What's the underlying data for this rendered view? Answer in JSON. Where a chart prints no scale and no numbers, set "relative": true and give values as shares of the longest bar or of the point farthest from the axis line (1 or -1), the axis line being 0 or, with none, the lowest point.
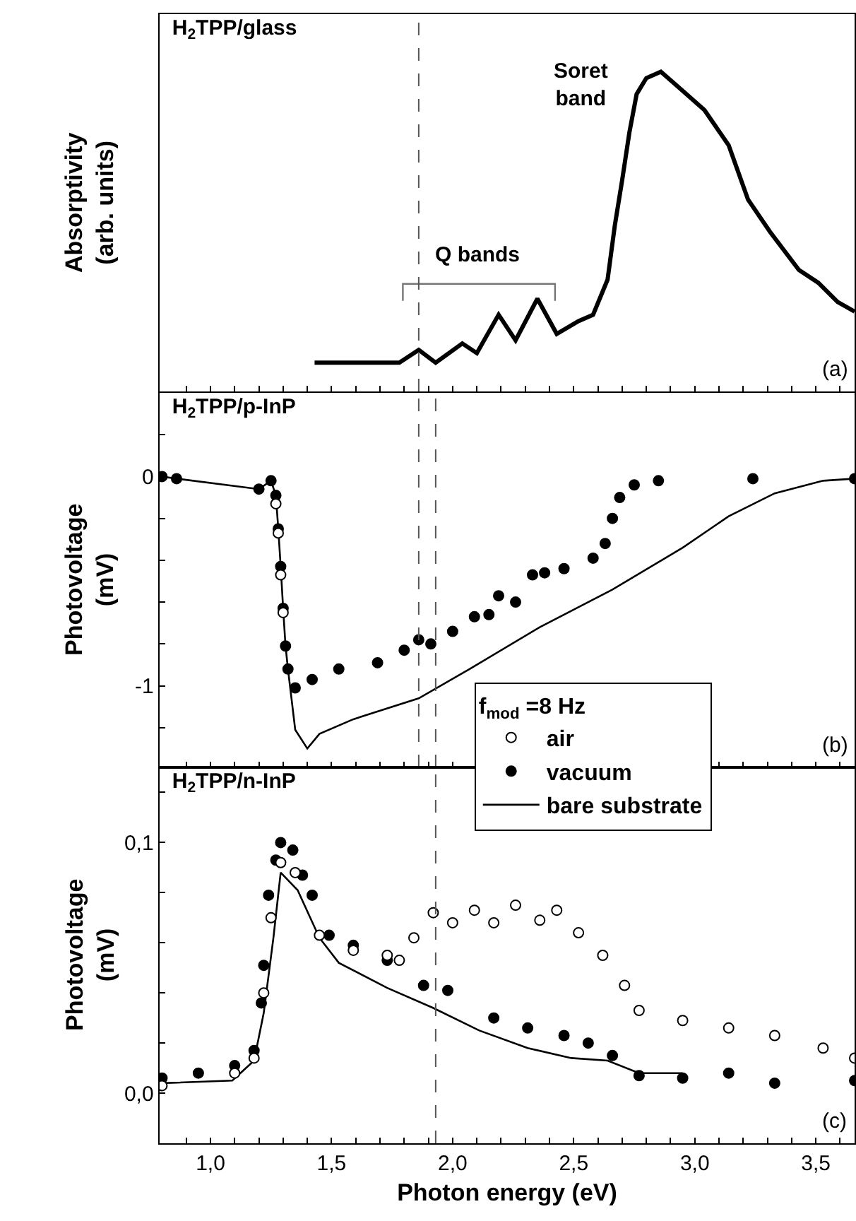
{
  "chart_data": [
    {
      "type": "line",
      "title": "H$_{2}$TPP/glass",
      "ylabel": "Absorptivity\n(arb. units)",
      "relative": true,
      "tick_labels": false,
      "grid": false,
      "legend": false,
      "marker": "none",
      "line_style": "solid",
      "annotations": [
        "(a)",
        "Soret\nband",
        "Q bands"
      ],
      "ref_lines": [
        {
          "axis": "x",
          "value": 1.86,
          "color": "#555555",
          "line_style": "dashed"
        }
      ],
      "xlim": [
        0.79,
        3.66
      ],
      "xticks": [
        {
          "value": 0.9,
          "label": null
        },
        {
          "value": 1.0,
          "label": null
        },
        {
          "value": 1.1,
          "label": null
        },
        {
          "value": 1.2,
          "label": null
        },
        {
          "value": 1.3,
          "label": null
        },
        {
          "value": 1.4,
          "label": null
        },
        {
          "value": 1.5,
          "label": null
        },
        {
          "value": 1.6,
          "label": null
        },
        {
          "value": 1.7,
          "label": null
        },
        {
          "value": 1.8,
          "label": null
        },
        {
          "value": 1.9,
          "label": null
        },
        {
          "value": 2.0,
          "label": null
        },
        {
          "value": 2.1,
          "label": null
        },
        {
          "value": 2.2,
          "label": null
        },
        {
          "value": 2.3,
          "label": null
        },
        {
          "value": 2.4,
          "label": null
        },
        {
          "value": 2.5,
          "label": null
        },
        {
          "value": 2.6,
          "label": null
        },
        {
          "value": 2.7,
          "label": null
        },
        {
          "value": 2.8,
          "label": null
        },
        {
          "value": 2.9,
          "label": null
        },
        {
          "value": 3.0,
          "label": null
        },
        {
          "value": 3.1,
          "label": null
        },
        {
          "value": 3.2,
          "label": null
        },
        {
          "value": 3.3,
          "label": null
        },
        {
          "value": 3.4,
          "label": null
        },
        {
          "value": 3.5,
          "label": null
        },
        {
          "value": 3.6,
          "label": null
        }
      ],
      "series": [
        {
          "color": "#000000",
          "x": [
            1.43,
            1.78,
            1.86,
            1.93,
            2.04,
            2.1,
            2.19,
            2.26,
            2.35,
            2.43,
            2.52,
            2.58,
            2.64,
            2.67,
            2.7,
            2.73,
            2.76,
            2.8,
            2.86,
            2.95,
            3.04,
            3.14,
            3.22,
            3.31,
            3.43,
            3.51,
            3.59,
            3.66
          ],
          "values": [
            0.09,
            0.09,
            0.13,
            0.09,
            0.15,
            0.12,
            0.24,
            0.16,
            0.29,
            0.18,
            0.22,
            0.24,
            0.35,
            0.52,
            0.66,
            0.81,
            0.93,
            0.98,
            1.0,
            0.94,
            0.88,
            0.77,
            0.6,
            0.5,
            0.38,
            0.34,
            0.28,
            0.25
          ]
        }
      ]
    },
    {
      "type": "scatter",
      "title": "H$_{2}$TPP/p-InP",
      "ylabel": "Photovoltage\n(mV)",
      "tick_labels": "y",
      "grid": false,
      "legend": false,
      "annotations": [
        "(b)"
      ],
      "ref_lines": [
        {
          "axis": "x",
          "value": 1.86,
          "color": "#555555",
          "line_style": "dashed"
        },
        {
          "axis": "x",
          "value": 1.93,
          "color": "#555555",
          "line_style": "dashed"
        }
      ],
      "xlim": [
        0.79,
        3.66
      ],
      "xticks": [
        {
          "value": 0.9,
          "label": null
        },
        {
          "value": 1.0,
          "label": null
        },
        {
          "value": 1.1,
          "label": null
        },
        {
          "value": 1.2,
          "label": null
        },
        {
          "value": 1.3,
          "label": null
        },
        {
          "value": 1.4,
          "label": null
        },
        {
          "value": 1.5,
          "label": null
        },
        {
          "value": 1.6,
          "label": null
        },
        {
          "value": 1.7,
          "label": null
        },
        {
          "value": 1.8,
          "label": null
        },
        {
          "value": 1.9,
          "label": null
        },
        {
          "value": 2.0,
          "label": null
        },
        {
          "value": 2.1,
          "label": null
        },
        {
          "value": 2.2,
          "label": null
        },
        {
          "value": 2.3,
          "label": null
        },
        {
          "value": 2.4,
          "label": null
        },
        {
          "value": 2.5,
          "label": null
        },
        {
          "value": 2.6,
          "label": null
        },
        {
          "value": 2.7,
          "label": null
        },
        {
          "value": 2.8,
          "label": null
        },
        {
          "value": 2.9,
          "label": null
        },
        {
          "value": 3.0,
          "label": null
        },
        {
          "value": 3.1,
          "label": null
        },
        {
          "value": 3.2,
          "label": null
        },
        {
          "value": 3.3,
          "label": null
        },
        {
          "value": 3.4,
          "label": null
        },
        {
          "value": 3.5,
          "label": null
        },
        {
          "value": 3.6,
          "label": null
        }
      ],
      "ylim": [
        -1.39,
        0.4
      ],
      "yticks": [
        {
          "value": -1.2,
          "label": null
        },
        -1,
        {
          "value": -0.8,
          "label": null
        },
        {
          "value": -0.6,
          "label": null
        },
        {
          "value": -0.4,
          "label": null
        },
        {
          "value": -0.2,
          "label": null
        },
        0,
        {
          "value": 0.2,
          "label": null
        }
      ],
      "series": [
        {
          "color": "#ffffff",
          "marker": "circle",
          "x": [
            1.27,
            1.28,
            1.29,
            1.3
          ],
          "values": [
            -0.13,
            -0.27,
            -0.47,
            -0.65
          ]
        },
        {
          "color": "#000000",
          "marker": "circle",
          "x": [
            0.8,
            0.86,
            1.2,
            1.25,
            1.27,
            1.28,
            1.29,
            1.3,
            1.31,
            1.32,
            1.35,
            1.42,
            1.53,
            1.69,
            1.8,
            1.86,
            1.91,
            2.0,
            2.09,
            2.15,
            2.19,
            2.26,
            2.33,
            2.38,
            2.46,
            2.58,
            2.63,
            2.66,
            2.69,
            2.75,
            2.85,
            3.24,
            3.66
          ],
          "values": [
            0,
            -0.01,
            -0.06,
            -0.02,
            -0.09,
            -0.25,
            -0.43,
            -0.63,
            -0.81,
            -0.92,
            -1.01,
            -0.97,
            -0.92,
            -0.89,
            -0.83,
            -0.78,
            -0.8,
            -0.74,
            -0.67,
            -0.66,
            -0.57,
            -0.6,
            -0.47,
            -0.46,
            -0.44,
            -0.39,
            -0.32,
            -0.2,
            -0.1,
            -0.04,
            -0.02,
            -0.01,
            -0.01
          ]
        },
        {
          "type": "line",
          "color": "#000000",
          "x": [
            0.8,
            0.86,
            1.2,
            1.25,
            1.27,
            1.28,
            1.29,
            1.3,
            1.31,
            1.32,
            1.35,
            1.4,
            1.45,
            1.59,
            1.86,
            2.07,
            2.36,
            2.66,
            2.95,
            3.14,
            3.33,
            3.53,
            3.66
          ],
          "values": [
            0,
            -0.01,
            -0.06,
            -0.02,
            -0.09,
            -0.25,
            -0.43,
            -0.63,
            -0.81,
            -0.92,
            -1.21,
            -1.3,
            -1.23,
            -1.16,
            -1.06,
            -0.92,
            -0.72,
            -0.54,
            -0.34,
            -0.19,
            -0.08,
            -0.02,
            -0.01
          ]
        }
      ]
    },
    {
      "type": "scatter",
      "title": "H$_{2}$TPP/n-InP",
      "xlabel": "Photon energy (eV)",
      "ylabel": "Photovoltage\n(mV)",
      "legend_title": "f$_{mod}$ =8 Hz",
      "grid": false,
      "legend": "top right",
      "annotations": [
        "(c)"
      ],
      "ref_lines": [
        {
          "axis": "x",
          "value": 1.93,
          "color": "#555555",
          "line_style": "dashed"
        }
      ],
      "xlim": [
        0.79,
        3.66
      ],
      "xticks": [
        {
          "value": 0.9,
          "label": null
        },
        {
          "value": 1.0,
          "label": "1,0"
        },
        {
          "value": 1.1,
          "label": null
        },
        {
          "value": 1.2,
          "label": null
        },
        {
          "value": 1.3,
          "label": null
        },
        {
          "value": 1.4,
          "label": null
        },
        {
          "value": 1.5,
          "label": "1,5"
        },
        {
          "value": 1.6,
          "label": null
        },
        {
          "value": 1.7,
          "label": null
        },
        {
          "value": 1.8,
          "label": null
        },
        {
          "value": 1.9,
          "label": null
        },
        {
          "value": 2.0,
          "label": "2,0"
        },
        {
          "value": 2.1,
          "label": null
        },
        {
          "value": 2.2,
          "label": null
        },
        {
          "value": 2.3,
          "label": null
        },
        {
          "value": 2.4,
          "label": null
        },
        {
          "value": 2.5,
          "label": "2,5"
        },
        {
          "value": 2.6,
          "label": null
        },
        {
          "value": 2.7,
          "label": null
        },
        {
          "value": 2.8,
          "label": null
        },
        {
          "value": 2.9,
          "label": null
        },
        {
          "value": 3.0,
          "label": "3,0"
        },
        {
          "value": 3.1,
          "label": null
        },
        {
          "value": 3.2,
          "label": null
        },
        {
          "value": 3.3,
          "label": null
        },
        {
          "value": 3.4,
          "label": null
        },
        {
          "value": 3.5,
          "label": "3,5"
        },
        {
          "value": 3.6,
          "label": null
        }
      ],
      "ylim": [
        -0.02,
        0.13
      ],
      "yticks": [
        {
          "value": 0,
          "label": "0,0"
        },
        {
          "value": 0.02,
          "label": null
        },
        {
          "value": 0.04,
          "label": null
        },
        {
          "value": 0.06,
          "label": null
        },
        {
          "value": 0.08,
          "label": null
        },
        {
          "value": 0.1,
          "label": "0,1"
        },
        {
          "value": 0.12,
          "label": null
        }
      ],
      "series": [
        {
          "name": "air",
          "color": "#ffffff",
          "marker": "circle",
          "x": [
            0.8,
            1.1,
            1.18,
            1.22,
            1.25,
            1.29,
            1.35,
            1.45,
            1.59,
            1.73,
            1.78,
            1.84,
            1.92,
            2.0,
            2.09,
            2.17,
            2.26,
            2.36,
            2.43,
            2.52,
            2.62,
            2.71,
            2.77,
            2.95,
            3.14,
            3.33,
            3.53,
            3.66
          ],
          "values": [
            0.003,
            0.008,
            0.014,
            0.04,
            0.07,
            0.092,
            0.088,
            0.063,
            0.057,
            0.055,
            0.053,
            0.062,
            0.072,
            0.068,
            0.073,
            0.068,
            0.075,
            0.069,
            0.073,
            0.064,
            0.055,
            0.043,
            0.033,
            0.029,
            0.026,
            0.023,
            0.018,
            0.014
          ]
        },
        {
          "name": "vacuum",
          "color": "#000000",
          "marker": "circle",
          "x": [
            0.8,
            0.95,
            1.1,
            1.18,
            1.21,
            1.22,
            1.24,
            1.27,
            1.29,
            1.34,
            1.38,
            1.42,
            1.49,
            1.59,
            1.73,
            1.88,
            1.98,
            2.17,
            2.31,
            2.46,
            2.56,
            2.66,
            2.77,
            2.95,
            3.14,
            3.33,
            3.66
          ],
          "values": [
            0.006,
            0.008,
            0.011,
            0.017,
            0.036,
            0.051,
            0.079,
            0.093,
            0.1,
            0.097,
            0.087,
            0.079,
            0.063,
            0.059,
            0.053,
            0.043,
            0.041,
            0.03,
            0.026,
            0.023,
            0.02,
            0.015,
            0.007,
            0.006,
            0.008,
            0.004,
            0.005
          ]
        },
        {
          "name": "bare substrate",
          "type": "line",
          "color": "#000000",
          "x": [
            0.8,
            1.09,
            1.18,
            1.22,
            1.26,
            1.29,
            1.36,
            1.45,
            1.53,
            1.73,
            1.92,
            2.11,
            2.31,
            2.49,
            2.64,
            2.77,
            2.95
          ],
          "values": [
            0.004,
            0.005,
            0.013,
            0.032,
            0.062,
            0.088,
            0.081,
            0.062,
            0.052,
            0.042,
            0.034,
            0.025,
            0.018,
            0.014,
            0.013,
            0.008,
            0.008
          ]
        }
      ]
    }
  ]
}
